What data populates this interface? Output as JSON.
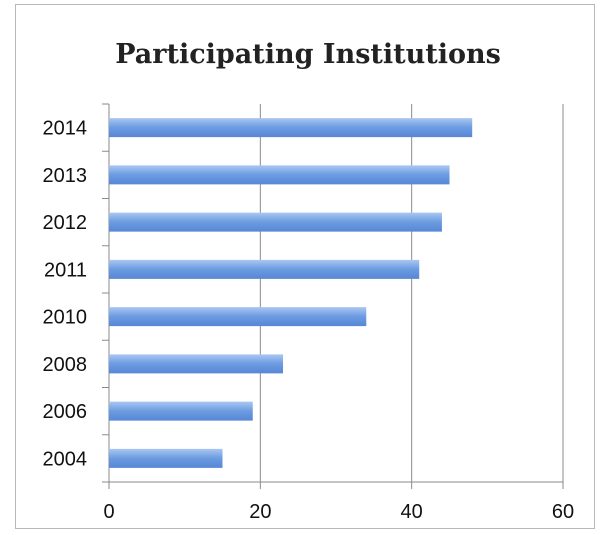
{
  "chart_data": {
    "type": "bar",
    "orientation": "horizontal",
    "title": "Participating Institutions",
    "categories": [
      "2004",
      "2006",
      "2008",
      "2010",
      "2011",
      "2012",
      "2013",
      "2014"
    ],
    "values": [
      15,
      19,
      23,
      34,
      41,
      44,
      45,
      48
    ],
    "xlim": [
      0,
      60
    ],
    "x_ticks": [
      "0",
      "20",
      "40",
      "60"
    ],
    "grid": "vertical",
    "legend": "none",
    "bar_color": "#6b9be0"
  }
}
